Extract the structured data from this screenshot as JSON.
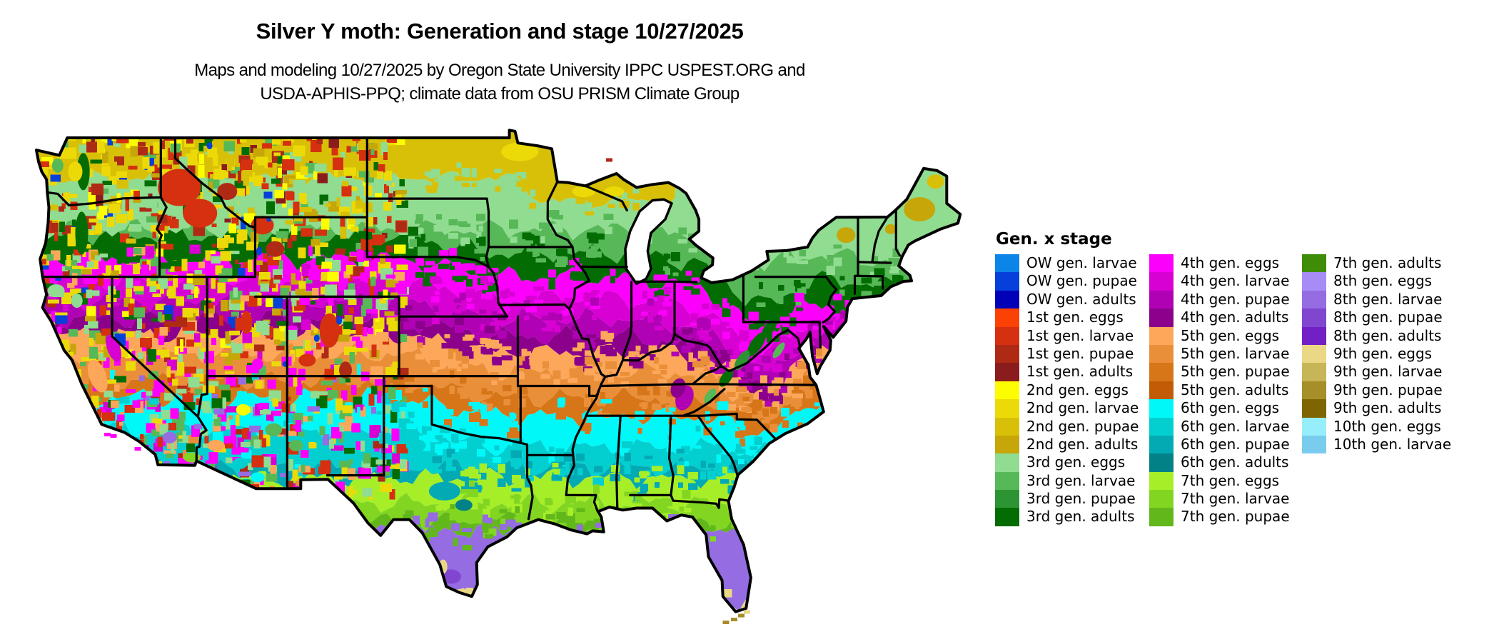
{
  "header": {
    "title": "Silver Y moth: Generation and stage 10/27/2025",
    "subtitle_line1": "Maps and modeling 10/27/2025 by Oregon State University IPPC USPEST.ORG and",
    "subtitle_line2": "USDA-APHIS-PPQ; climate data from OSU PRISM Climate Group"
  },
  "map": {
    "region": "Continental United States",
    "water_color": "#ffffff",
    "boundary_color": "#000000"
  },
  "legend": {
    "title": "Gen. x stage",
    "columns": [
      [
        {
          "label": "OW gen. larvae",
          "color": "#0B86E8"
        },
        {
          "label": "OW gen. pupae",
          "color": "#0540DA"
        },
        {
          "label": "OW gen. adults",
          "color": "#0101B8"
        },
        {
          "label": "1st gen. eggs",
          "color": "#FB4104"
        },
        {
          "label": "1st gen. larvae",
          "color": "#D53010"
        },
        {
          "label": "1st gen. pupae",
          "color": "#AF2A15"
        },
        {
          "label": "1st gen. adults",
          "color": "#8B1C1E"
        },
        {
          "label": "2nd gen. eggs",
          "color": "#FDFD01"
        },
        {
          "label": "2nd gen. larvae",
          "color": "#ECDA08"
        },
        {
          "label": "2nd gen. pupae",
          "color": "#D8C008"
        },
        {
          "label": "2nd gen. adults",
          "color": "#C6A608"
        },
        {
          "label": "3rd gen. eggs",
          "color": "#90DC90"
        },
        {
          "label": "3rd gen. larvae",
          "color": "#57B857"
        },
        {
          "label": "3rd gen. pupae",
          "color": "#2D9434"
        },
        {
          "label": "3rd gen. adults",
          "color": "#036D03"
        }
      ],
      [
        {
          "label": "4th gen. eggs",
          "color": "#FB01FB"
        },
        {
          "label": "4th gen. larvae",
          "color": "#D801D3"
        },
        {
          "label": "4th gen. pupae",
          "color": "#B001B4"
        },
        {
          "label": "4th gen. adults",
          "color": "#8B018B"
        },
        {
          "label": "5th gen. eggs",
          "color": "#FDA75A"
        },
        {
          "label": "5th gen. larvae",
          "color": "#EA8F39"
        },
        {
          "label": "5th gen. pupae",
          "color": "#D67619"
        },
        {
          "label": "5th gen. adults",
          "color": "#C25B05"
        },
        {
          "label": "6th gen. eggs",
          "color": "#01F8F8"
        },
        {
          "label": "6th gen. larvae",
          "color": "#04CFD0"
        },
        {
          "label": "6th gen. pupae",
          "color": "#03AAB4"
        },
        {
          "label": "6th gen. adults",
          "color": "#028187"
        },
        {
          "label": "7th gen. eggs",
          "color": "#A6EE28"
        },
        {
          "label": "7th gen. larvae",
          "color": "#82D622"
        },
        {
          "label": "7th gen. pupae",
          "color": "#62B81A"
        }
      ],
      [
        {
          "label": "7th gen. adults",
          "color": "#3F8C09"
        },
        {
          "label": "8th gen. eggs",
          "color": "#A78CF6"
        },
        {
          "label": "8th gen. larvae",
          "color": "#956CE2"
        },
        {
          "label": "8th gen. pupae",
          "color": "#8146D0"
        },
        {
          "label": "8th gen. adults",
          "color": "#7220C6"
        },
        {
          "label": "9th gen. eggs",
          "color": "#EBD886"
        },
        {
          "label": "9th gen. larvae",
          "color": "#C7B657"
        },
        {
          "label": "9th gen. pupae",
          "color": "#A68E28"
        },
        {
          "label": "9th gen. adults",
          "color": "#7E6501"
        },
        {
          "label": "10th gen. eggs",
          "color": "#97EEFB"
        },
        {
          "label": "10th gen. larvae",
          "color": "#7ACCEE"
        }
      ]
    ]
  }
}
